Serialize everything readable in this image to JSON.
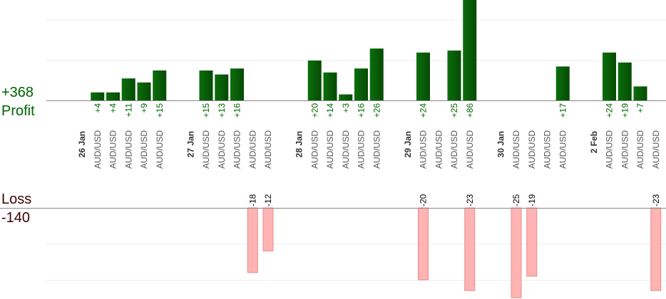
{
  "summary": {
    "profit_total": "+368",
    "profit_label": "Profit",
    "loss_label": "Loss",
    "loss_total": "-140"
  },
  "colors": {
    "profit_bar": "#0b6e0b",
    "profit_bar_dark": "#054b05",
    "profit_text": "#006400",
    "loss_bar": "#ffb3b3",
    "loss_border": "#e88c8c",
    "loss_text": "#3b0000",
    "axis": "#888888",
    "grid": "#eeeeee",
    "category_text": "#555555",
    "date_text": "#333333"
  },
  "chart_data": {
    "type": "bar",
    "x": [
      "26 Jan",
      "AUD/USD",
      "AUD/USD",
      "AUD/USD",
      "AUD/USD",
      "AUD/USD",
      "",
      "27 Jan",
      "AUD/USD",
      "AUD/USD",
      "AUD/USD",
      "AUD/USD",
      "AUD/USD",
      "",
      "28 Jan",
      "AUD/USD",
      "AUD/USD",
      "AUD/USD",
      "AUD/USD",
      "AUD/USD",
      "",
      "29 Jan",
      "AUD/USD",
      "AUD/USD",
      "AUD/USD",
      "AUD/USD",
      "",
      "30 Jan",
      "AUD/USD",
      "AUD/USD",
      "AUD/USD",
      "AUD/USD",
      "",
      "2 Feb",
      "AUD/USD",
      "AUD/USD",
      "AUD/USD",
      "AUD/USD"
    ],
    "profit_values": [
      null,
      4,
      4,
      11,
      9,
      15,
      null,
      null,
      15,
      13,
      16,
      null,
      null,
      null,
      null,
      20,
      14,
      3,
      16,
      26,
      null,
      null,
      24,
      null,
      25,
      86,
      null,
      null,
      null,
      null,
      null,
      17,
      null,
      null,
      24,
      19,
      7,
      null
    ],
    "profit_labels": [
      "",
      "+4",
      "+4",
      "+11",
      "+9",
      "+15",
      "",
      "",
      "+15",
      "+13",
      "+16",
      "",
      "",
      "",
      "",
      "+20",
      "+14",
      "+3",
      "+16",
      "+26",
      "",
      "",
      "+24",
      "",
      "+25",
      "+86",
      "",
      "",
      "",
      "",
      "",
      "+17",
      "",
      "",
      "+24",
      "+19",
      "+7",
      ""
    ],
    "loss_values": [
      null,
      null,
      null,
      null,
      null,
      null,
      null,
      null,
      null,
      null,
      null,
      -18,
      -12,
      null,
      null,
      null,
      null,
      null,
      null,
      null,
      null,
      null,
      -20,
      null,
      null,
      -23,
      null,
      null,
      -25,
      -19,
      null,
      null,
      null,
      null,
      null,
      null,
      null,
      -23
    ],
    "loss_labels": [
      "",
      "",
      "",
      "",
      "",
      "",
      "",
      "",
      "",
      "",
      "",
      "-18",
      "-12",
      "",
      "",
      "",
      "",
      "",
      "",
      "",
      "",
      "",
      "-20",
      "",
      "",
      "-23",
      "",
      "",
      "-25",
      "-19",
      "",
      "",
      "",
      "",
      "",
      "",
      "",
      "-23"
    ],
    "profit_ylim": [
      0,
      20
    ],
    "loss_ylim": [
      -20,
      0
    ],
    "grid": true,
    "legend": "none"
  }
}
